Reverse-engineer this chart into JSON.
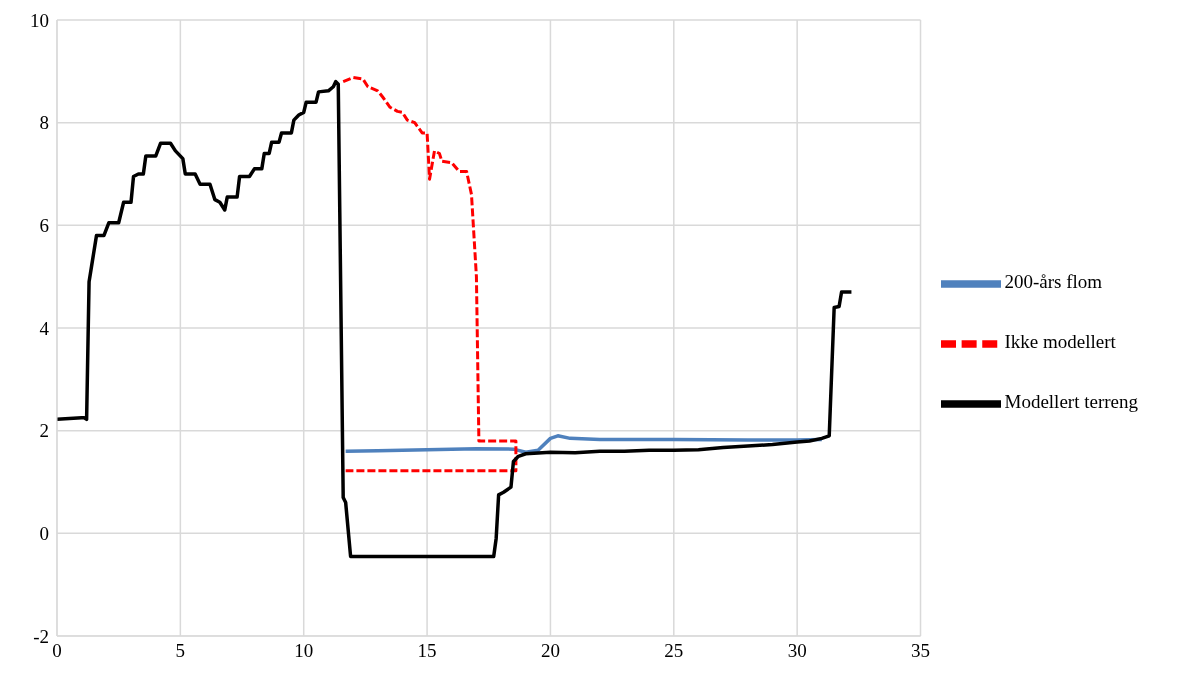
{
  "chart_data": {
    "type": "line",
    "xlim": [
      0,
      35
    ],
    "xticks": [
      0,
      5,
      10,
      15,
      20,
      25,
      30,
      35
    ],
    "ylim": [
      -2,
      10
    ],
    "yticks": [
      -2,
      0,
      2,
      4,
      6,
      8,
      10
    ],
    "grid": true,
    "legend": "right",
    "marker": "none",
    "series": [
      {
        "name": "200-års flom",
        "color": "#4f81bd",
        "line_style": "solid",
        "x": [
          11.7,
          13,
          15,
          17,
          18.5,
          19,
          19.5,
          20,
          20.3,
          20.8,
          22,
          25,
          28,
          30,
          31
        ],
        "values": [
          1.6,
          1.61,
          1.63,
          1.65,
          1.64,
          1.58,
          1.62,
          1.85,
          1.9,
          1.85,
          1.83,
          1.83,
          1.82,
          1.82,
          1.83
        ]
      },
      {
        "name": "Ikke modellert",
        "color": "#ff0000",
        "line_style": "dashed",
        "x": [
          11.6,
          12,
          12.4,
          12.6,
          13,
          13.2,
          13.5,
          13.8,
          14,
          14.2,
          14.5,
          14.8,
          15,
          15.1,
          15.3,
          15.5,
          15.6,
          16,
          16.3,
          16.6,
          16.8,
          17,
          17.1,
          18.6,
          18.6,
          11.7
        ],
        "values": [
          8.8,
          8.88,
          8.85,
          8.7,
          8.62,
          8.5,
          8.3,
          8.22,
          8.2,
          8.05,
          8,
          7.8,
          7.8,
          6.9,
          7.45,
          7.4,
          7.25,
          7.22,
          7.05,
          7.05,
          6.6,
          5,
          1.8,
          1.8,
          1.22,
          1.22
        ]
      },
      {
        "name": "Modellert terreng",
        "color": "#000000",
        "line_style": "solid",
        "x": [
          0,
          1,
          1.1,
          1.2,
          1.3,
          1.4,
          1.6,
          1.9,
          2.1,
          2.5,
          2.7,
          3,
          3.1,
          3.3,
          3.5,
          3.6,
          4,
          4.2,
          4.6,
          4.8,
          5.1,
          5.2,
          5.6,
          5.8,
          6.2,
          6.4,
          6.6,
          6.8,
          6.9,
          7.3,
          7.4,
          7.8,
          8,
          8.3,
          8.4,
          8.6,
          8.7,
          9,
          9.1,
          9.5,
          9.6,
          9.8,
          10,
          10.1,
          10.5,
          10.6,
          11,
          11.2,
          11.3,
          11.4,
          11.6,
          11.7,
          11.9,
          17.7,
          17.8,
          17.9,
          18.1,
          18.4,
          18.5,
          18.7,
          19,
          20,
          21,
          22,
          23,
          24,
          25,
          26,
          27,
          28,
          29,
          30,
          30.5,
          31,
          31.3,
          31.5,
          31.7,
          31.8,
          32.2
        ],
        "values": [
          2.22,
          2.25,
          2.25,
          2.22,
          4.9,
          5.2,
          5.8,
          5.8,
          6.05,
          6.05,
          6.45,
          6.45,
          6.95,
          7,
          7,
          7.35,
          7.35,
          7.6,
          7.6,
          7.45,
          7.3,
          7,
          7,
          6.8,
          6.8,
          6.5,
          6.45,
          6.3,
          6.55,
          6.55,
          6.95,
          6.95,
          7.1,
          7.1,
          7.4,
          7.4,
          7.62,
          7.62,
          7.8,
          7.8,
          8.05,
          8.15,
          8.2,
          8.4,
          8.4,
          8.6,
          8.62,
          8.7,
          8.8,
          8.75,
          0.7,
          0.6,
          -0.45,
          -0.45,
          -0.1,
          0.75,
          0.8,
          0.9,
          1.4,
          1.5,
          1.55,
          1.58,
          1.57,
          1.6,
          1.6,
          1.62,
          1.62,
          1.63,
          1.67,
          1.7,
          1.73,
          1.78,
          1.8,
          1.85,
          1.9,
          4.4,
          4.42,
          4.7,
          4.7
        ]
      }
    ]
  }
}
